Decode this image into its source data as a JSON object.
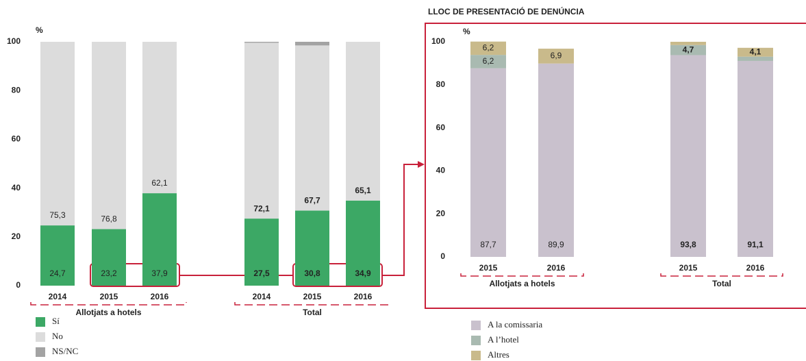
{
  "chart_data": [
    {
      "type": "stacked_bar",
      "y_label": "%",
      "categories": [
        "2014",
        "2015",
        "2016",
        "2014",
        "2015",
        "2016"
      ],
      "groups": [
        {
          "label": "Allotjats a hotels",
          "count": 3
        },
        {
          "label": "Total",
          "count": 3
        }
      ],
      "series": [
        {
          "name": "Sí",
          "color": "#3ca865",
          "values": [
            24.7,
            23.2,
            37.9,
            27.5,
            30.8,
            34.9
          ],
          "value_labels": [
            "24,7",
            "23,2",
            "37,9",
            "27,5",
            "30,8",
            "34,9"
          ]
        },
        {
          "name": "No",
          "color": "#dcdcdc",
          "values": [
            75.3,
            76.8,
            62.1,
            72.1,
            67.7,
            65.1
          ],
          "value_labels": [
            "75,3",
            "76,8",
            "62,1",
            "72,1",
            "67,7",
            "65,1"
          ]
        },
        {
          "name": "NS/NC",
          "color": "#a3a3a3",
          "values": [
            0,
            0,
            0,
            0.4,
            1.5,
            0
          ]
        }
      ],
      "ylim": [
        0,
        100
      ],
      "yticks": [
        0,
        20,
        40,
        60,
        80,
        100
      ]
    },
    {
      "type": "stacked_bar",
      "title": "LLOC DE PRESENTACIÓ DE DENÚNCIA",
      "y_label": "%",
      "categories": [
        "2015",
        "2016",
        "2015",
        "2016"
      ],
      "groups": [
        {
          "label": "Allotjats a hotels",
          "count": 2
        },
        {
          "label": "Total",
          "count": 2
        }
      ],
      "series": [
        {
          "name": "A la comissaria",
          "color": "#c9c1cd",
          "values": [
            87.7,
            89.9,
            93.8,
            91.1
          ],
          "value_labels": [
            "87,7",
            "89,9",
            "93,8",
            "91,1"
          ]
        },
        {
          "name": "A l’hotel",
          "color": "#a9bab1",
          "values": [
            6.2,
            0,
            4.7,
            2
          ],
          "value_labels": [
            "6,2",
            null,
            "4,7",
            null
          ]
        },
        {
          "name": "Altres",
          "color": "#c9ba8b",
          "values": [
            6.2,
            6.9,
            1.5,
            4.1
          ],
          "value_labels": [
            "6,2",
            "6,9",
            null,
            "4,1"
          ]
        }
      ],
      "ylim": [
        0,
        100
      ],
      "yticks": [
        0,
        20,
        40,
        60,
        80,
        100
      ]
    }
  ]
}
